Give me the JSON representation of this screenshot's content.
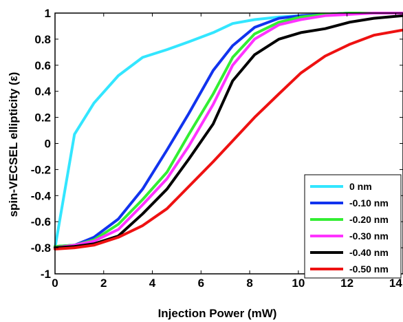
{
  "chart_data": {
    "type": "line",
    "xlabel": "Injection Power (mW)",
    "ylabel": "spin-VECSEL ellipticity (ε)",
    "xlim": [
      0,
      14.3
    ],
    "ylim": [
      -1,
      1
    ],
    "x_ticks": [
      0,
      2,
      4,
      6,
      8,
      10,
      12,
      14
    ],
    "y_ticks": [
      -1,
      -0.8,
      -0.6,
      -0.4,
      -0.2,
      0,
      0.2,
      0.4,
      0.6,
      0.8,
      1
    ],
    "x_tick_labels": [
      "0",
      "2",
      "4",
      "6",
      "8",
      "10",
      "12",
      "14"
    ],
    "y_tick_labels": [
      "-1",
      "-0.8",
      "-0.6",
      "-0.4",
      "-0.2",
      "0",
      "0.2",
      "0.4",
      "0.6",
      "0.8",
      "1"
    ],
    "grid": false,
    "legend_position": "bottom-right",
    "series": [
      {
        "name": "0 nm",
        "color": "#33e6ff",
        "points": [
          [
            0,
            -0.8
          ],
          [
            0.8,
            0.07
          ],
          [
            1.6,
            0.31
          ],
          [
            2.6,
            0.52
          ],
          [
            3.6,
            0.66
          ],
          [
            4.6,
            0.72
          ],
          [
            5.5,
            0.78
          ],
          [
            6.5,
            0.85
          ],
          [
            7.3,
            0.92
          ],
          [
            8.2,
            0.95
          ],
          [
            9.2,
            0.97
          ],
          [
            10.1,
            0.98
          ],
          [
            11.1,
            0.99
          ],
          [
            12.1,
            1.0
          ],
          [
            13.1,
            1.0
          ],
          [
            14.3,
            1.0
          ]
        ]
      },
      {
        "name": "-0.10 nm",
        "color": "#1133ee",
        "points": [
          [
            0,
            -0.79
          ],
          [
            0.8,
            -0.78
          ],
          [
            1.6,
            -0.72
          ],
          [
            2.6,
            -0.58
          ],
          [
            3.6,
            -0.35
          ],
          [
            4.6,
            -0.05
          ],
          [
            5.5,
            0.23
          ],
          [
            6.5,
            0.56
          ],
          [
            7.3,
            0.75
          ],
          [
            8.2,
            0.89
          ],
          [
            9.2,
            0.96
          ],
          [
            10.1,
            0.98
          ],
          [
            11.1,
            0.99
          ],
          [
            12.1,
            1.0
          ],
          [
            13.1,
            1.0
          ],
          [
            14.3,
            1.0
          ]
        ]
      },
      {
        "name": "-0.20 nm",
        "color": "#33ee33",
        "points": [
          [
            0,
            -0.79
          ],
          [
            0.8,
            -0.78
          ],
          [
            1.6,
            -0.74
          ],
          [
            2.6,
            -0.62
          ],
          [
            3.6,
            -0.43
          ],
          [
            4.6,
            -0.22
          ],
          [
            5.5,
            0.07
          ],
          [
            6.5,
            0.38
          ],
          [
            7.3,
            0.66
          ],
          [
            8.2,
            0.84
          ],
          [
            9.2,
            0.93
          ],
          [
            10.1,
            0.97
          ],
          [
            11.1,
            0.99
          ],
          [
            12.1,
            1.0
          ],
          [
            13.1,
            1.0
          ],
          [
            14.3,
            1.0
          ]
        ]
      },
      {
        "name": "-0.30 nm",
        "color": "#ff33ff",
        "points": [
          [
            0,
            -0.8
          ],
          [
            0.8,
            -0.78
          ],
          [
            1.6,
            -0.75
          ],
          [
            2.6,
            -0.66
          ],
          [
            3.6,
            -0.47
          ],
          [
            4.6,
            -0.27
          ],
          [
            5.5,
            -0.02
          ],
          [
            6.5,
            0.3
          ],
          [
            7.3,
            0.6
          ],
          [
            8.2,
            0.8
          ],
          [
            9.2,
            0.91
          ],
          [
            10.1,
            0.95
          ],
          [
            11.1,
            0.98
          ],
          [
            12.1,
            0.99
          ],
          [
            13.1,
            1.0
          ],
          [
            14.3,
            1.0
          ]
        ]
      },
      {
        "name": "-0.40 nm",
        "color": "#000000",
        "points": [
          [
            0,
            -0.8
          ],
          [
            0.8,
            -0.79
          ],
          [
            1.6,
            -0.77
          ],
          [
            2.6,
            -0.71
          ],
          [
            3.6,
            -0.54
          ],
          [
            4.6,
            -0.35
          ],
          [
            5.5,
            -0.12
          ],
          [
            6.5,
            0.15
          ],
          [
            7.3,
            0.48
          ],
          [
            8.2,
            0.68
          ],
          [
            9.2,
            0.8
          ],
          [
            10.1,
            0.85
          ],
          [
            11.1,
            0.88
          ],
          [
            12.1,
            0.93
          ],
          [
            13.1,
            0.96
          ],
          [
            14.3,
            0.98
          ]
        ]
      },
      {
        "name": "-0.50 nm",
        "color": "#ee1111",
        "points": [
          [
            0,
            -0.81
          ],
          [
            0.8,
            -0.8
          ],
          [
            1.6,
            -0.78
          ],
          [
            2.6,
            -0.72
          ],
          [
            3.6,
            -0.63
          ],
          [
            4.6,
            -0.5
          ],
          [
            5.5,
            -0.33
          ],
          [
            6.5,
            -0.14
          ],
          [
            7.3,
            0.02
          ],
          [
            8.2,
            0.2
          ],
          [
            9.2,
            0.38
          ],
          [
            10.1,
            0.54
          ],
          [
            11.1,
            0.67
          ],
          [
            12.1,
            0.76
          ],
          [
            13.1,
            0.83
          ],
          [
            14.3,
            0.87
          ]
        ]
      }
    ]
  }
}
